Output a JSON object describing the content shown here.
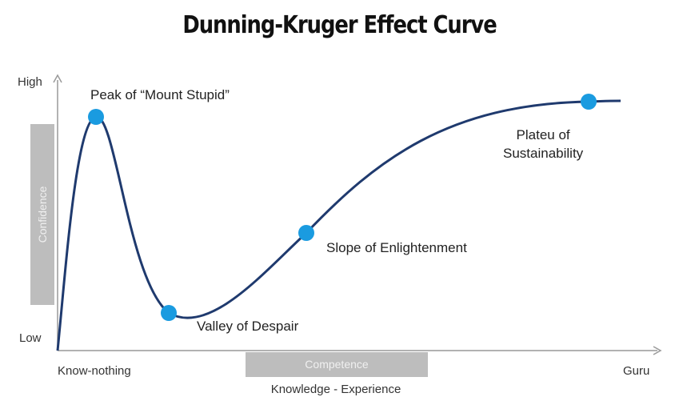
{
  "title": "Dunning-Kruger Effect Curve",
  "y_axis": {
    "high": "High",
    "low": "Low",
    "label": "Confidence"
  },
  "x_axis": {
    "start": "Know-nothing",
    "end": "Guru",
    "label": "Competence",
    "subtitle": "Knowledge - Experience"
  },
  "annotations": {
    "peak": "Peak of “Mount Stupid”",
    "valley": "Valley of Despair",
    "slope": "Slope of Enlightenment",
    "plateau_line1": "Plateu of",
    "plateau_line2": "Sustainability"
  },
  "colors": {
    "curve": "#1f3a6e",
    "marker": "#1a9be0",
    "band": "#bdbdbd"
  }
}
